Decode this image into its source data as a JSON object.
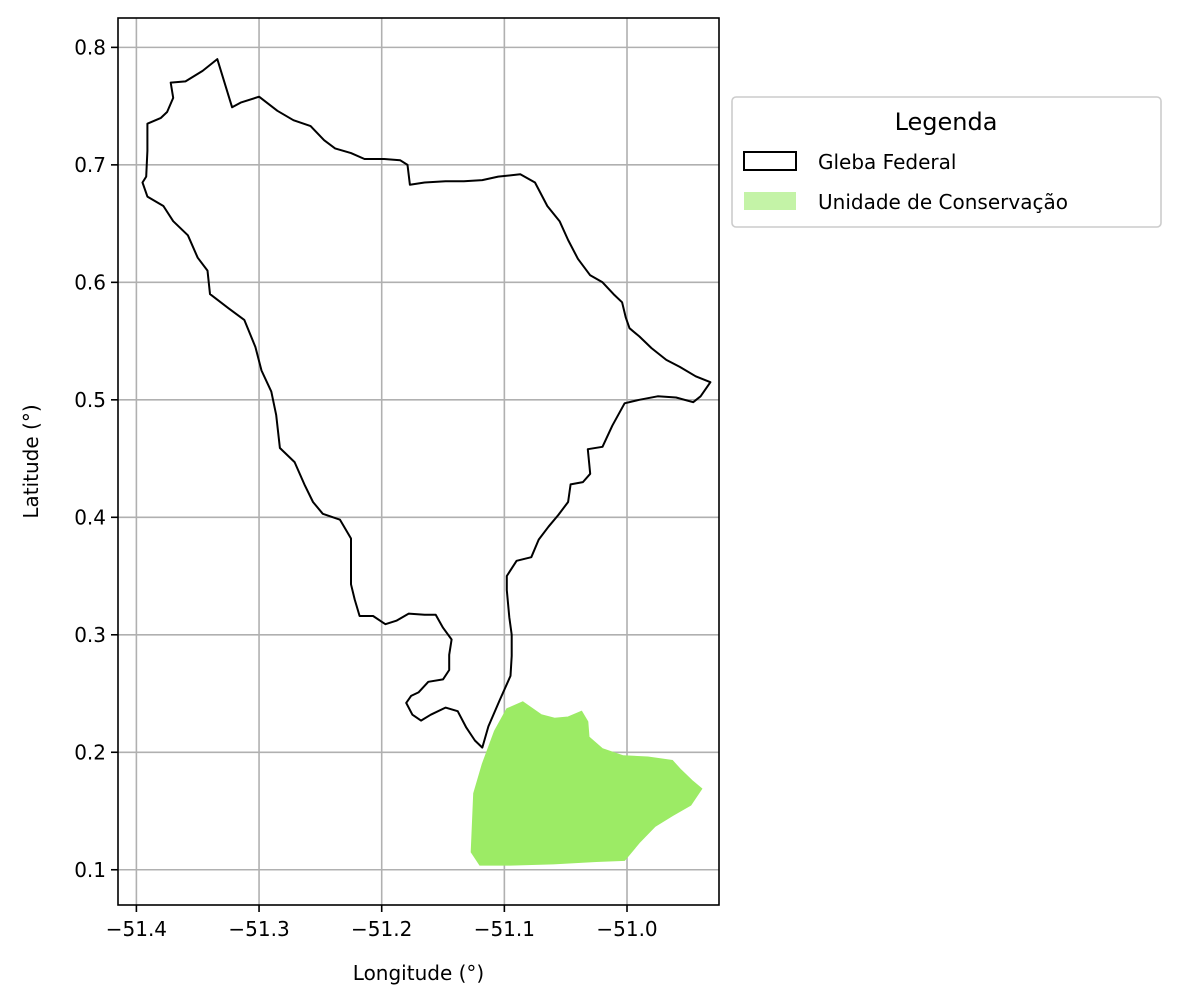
{
  "chart_data": {
    "type": "map",
    "xlabel": "Longitude (°)",
    "ylabel": "Latitude (°)",
    "xlim": [
      -51.415,
      -50.925
    ],
    "ylim": [
      0.07,
      0.825
    ],
    "xticks": [
      -51.4,
      -51.3,
      -51.2,
      -51.1,
      -51.0
    ],
    "xtick_labels": [
      "−51.4",
      "−51.3",
      "−51.2",
      "−51.1",
      "−51.0"
    ],
    "yticks": [
      0.1,
      0.2,
      0.3,
      0.4,
      0.5,
      0.6,
      0.7,
      0.8
    ],
    "ytick_labels": [
      "0.1",
      "0.2",
      "0.3",
      "0.4",
      "0.5",
      "0.6",
      "0.7",
      "0.8"
    ],
    "grid": true,
    "legend": {
      "title": "Legenda",
      "placement": "outside-right-top",
      "entries": [
        {
          "name": "Gleba Federal",
          "style": "outline",
          "edge_color": "#000000",
          "fill": "none"
        },
        {
          "name": "Unidade de Conservação",
          "style": "fill",
          "fill": "#c4f3a7"
        }
      ]
    },
    "series": [
      {
        "name": "Gleba Federal",
        "type": "polygon-outline",
        "color": "#000000",
        "points": [
          [
            -51.334,
            0.79
          ],
          [
            -51.322,
            0.749
          ],
          [
            -51.315,
            0.753
          ],
          [
            -51.3,
            0.758
          ],
          [
            -51.285,
            0.746
          ],
          [
            -51.272,
            0.738
          ],
          [
            -51.258,
            0.733
          ],
          [
            -51.247,
            0.721
          ],
          [
            -51.238,
            0.714
          ],
          [
            -51.225,
            0.71
          ],
          [
            -51.214,
            0.705
          ],
          [
            -51.198,
            0.705
          ],
          [
            -51.185,
            0.704
          ],
          [
            -51.179,
            0.7
          ],
          [
            -51.177,
            0.683
          ],
          [
            -51.165,
            0.685
          ],
          [
            -51.148,
            0.686
          ],
          [
            -51.133,
            0.686
          ],
          [
            -51.118,
            0.687
          ],
          [
            -51.105,
            0.69
          ],
          [
            -51.087,
            0.692
          ],
          [
            -51.075,
            0.685
          ],
          [
            -51.065,
            0.665
          ],
          [
            -51.055,
            0.652
          ],
          [
            -51.048,
            0.636
          ],
          [
            -51.04,
            0.62
          ],
          [
            -51.03,
            0.606
          ],
          [
            -51.02,
            0.6
          ],
          [
            -51.011,
            0.59
          ],
          [
            -51.004,
            0.583
          ],
          [
            -51.001,
            0.57
          ],
          [
            -50.998,
            0.561
          ],
          [
            -50.99,
            0.554
          ],
          [
            -50.98,
            0.544
          ],
          [
            -50.968,
            0.534
          ],
          [
            -50.957,
            0.528
          ],
          [
            -50.944,
            0.52
          ],
          [
            -50.932,
            0.515
          ],
          [
            -50.94,
            0.503
          ],
          [
            -50.946,
            0.498
          ],
          [
            -50.96,
            0.502
          ],
          [
            -50.975,
            0.503
          ],
          [
            -50.99,
            0.5
          ],
          [
            -51.002,
            0.497
          ],
          [
            -51.012,
            0.478
          ],
          [
            -51.02,
            0.46
          ],
          [
            -51.032,
            0.458
          ],
          [
            -51.03,
            0.437
          ],
          [
            -51.036,
            0.43
          ],
          [
            -51.046,
            0.428
          ],
          [
            -51.048,
            0.413
          ],
          [
            -51.056,
            0.402
          ],
          [
            -51.064,
            0.392
          ],
          [
            -51.072,
            0.381
          ],
          [
            -51.078,
            0.366
          ],
          [
            -51.09,
            0.363
          ],
          [
            -51.098,
            0.35
          ],
          [
            -51.098,
            0.338
          ],
          [
            -51.096,
            0.315
          ],
          [
            -51.094,
            0.3
          ],
          [
            -51.094,
            0.282
          ],
          [
            -51.095,
            0.265
          ],
          [
            -51.104,
            0.244
          ],
          [
            -51.113,
            0.222
          ],
          [
            -51.118,
            0.204
          ],
          [
            -51.124,
            0.21
          ],
          [
            -51.131,
            0.221
          ],
          [
            -51.138,
            0.235
          ],
          [
            -51.148,
            0.238
          ],
          [
            -51.16,
            0.232
          ],
          [
            -51.168,
            0.227
          ],
          [
            -51.175,
            0.232
          ],
          [
            -51.18,
            0.242
          ],
          [
            -51.176,
            0.248
          ],
          [
            -51.17,
            0.251
          ],
          [
            -51.162,
            0.26
          ],
          [
            -51.15,
            0.262
          ],
          [
            -51.145,
            0.27
          ],
          [
            -51.145,
            0.283
          ],
          [
            -51.143,
            0.296
          ],
          [
            -51.15,
            0.306
          ],
          [
            -51.156,
            0.317
          ],
          [
            -51.165,
            0.317
          ],
          [
            -51.178,
            0.318
          ],
          [
            -51.188,
            0.312
          ],
          [
            -51.197,
            0.309
          ],
          [
            -51.207,
            0.316
          ],
          [
            -51.218,
            0.316
          ],
          [
            -51.222,
            0.33
          ],
          [
            -51.225,
            0.343
          ],
          [
            -51.225,
            0.363
          ],
          [
            -51.225,
            0.382
          ],
          [
            -51.234,
            0.398
          ],
          [
            -51.248,
            0.403
          ],
          [
            -51.256,
            0.413
          ],
          [
            -51.263,
            0.428
          ],
          [
            -51.271,
            0.447
          ],
          [
            -51.283,
            0.459
          ],
          [
            -51.286,
            0.487
          ],
          [
            -51.29,
            0.507
          ],
          [
            -51.298,
            0.525
          ],
          [
            -51.303,
            0.545
          ],
          [
            -51.312,
            0.568
          ],
          [
            -51.325,
            0.578
          ],
          [
            -51.34,
            0.59
          ],
          [
            -51.342,
            0.61
          ],
          [
            -51.35,
            0.621
          ],
          [
            -51.358,
            0.64
          ],
          [
            -51.37,
            0.652
          ],
          [
            -51.378,
            0.665
          ],
          [
            -51.391,
            0.673
          ],
          [
            -51.395,
            0.685
          ],
          [
            -51.392,
            0.69
          ],
          [
            -51.391,
            0.712
          ],
          [
            -51.391,
            0.735
          ],
          [
            -51.38,
            0.74
          ],
          [
            -51.375,
            0.745
          ],
          [
            -51.37,
            0.757
          ],
          [
            -51.372,
            0.77
          ],
          [
            -51.36,
            0.771
          ],
          [
            -51.346,
            0.78
          ]
        ]
      },
      {
        "name": "Unidade de Conservação",
        "type": "polygon-fill",
        "color": "#9ceb65",
        "points": [
          [
            -51.125,
            0.165
          ],
          [
            -51.118,
            0.19
          ],
          [
            -51.108,
            0.218
          ],
          [
            -51.098,
            0.237
          ],
          [
            -51.085,
            0.243
          ],
          [
            -51.07,
            0.232
          ],
          [
            -51.059,
            0.229
          ],
          [
            -51.048,
            0.23
          ],
          [
            -51.037,
            0.235
          ],
          [
            -51.032,
            0.226
          ],
          [
            -51.031,
            0.213
          ],
          [
            -51.02,
            0.203
          ],
          [
            -51.003,
            0.197
          ],
          [
            -50.983,
            0.196
          ],
          [
            -50.963,
            0.193
          ],
          [
            -50.956,
            0.185
          ],
          [
            -50.947,
            0.176
          ],
          [
            -50.939,
            0.169
          ],
          [
            -50.948,
            0.155
          ],
          [
            -50.963,
            0.146
          ],
          [
            -50.977,
            0.137
          ],
          [
            -50.99,
            0.123
          ],
          [
            -51.002,
            0.108
          ],
          [
            -51.025,
            0.107
          ],
          [
            -51.06,
            0.105
          ],
          [
            -51.095,
            0.104
          ],
          [
            -51.12,
            0.104
          ],
          [
            -51.127,
            0.115
          ]
        ]
      }
    ]
  }
}
